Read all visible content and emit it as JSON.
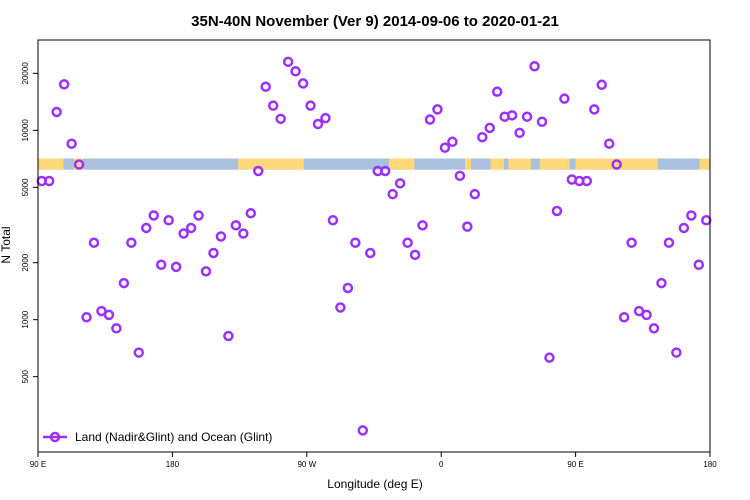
{
  "chart_data": {
    "type": "scatter",
    "title": "35N-40N November (Ver 9)   2014-09-06 to 2020-01-21",
    "xlabel": "Longitude (deg E)",
    "ylabel": "N Total",
    "x_ticks": [
      {
        "value": 90,
        "label": "90 E"
      },
      {
        "value": 180,
        "label": "180"
      },
      {
        "value": 270,
        "label": "90 W"
      },
      {
        "value": 360,
        "label": "0"
      },
      {
        "value": 450,
        "label": "90 E"
      },
      {
        "value": 540,
        "label": "180"
      }
    ],
    "xlim": [
      90,
      540
    ],
    "y_scale": "log",
    "ylim": [
      200,
      30000
    ],
    "y_ticks": [
      500,
      1000,
      2000,
      5000,
      10000,
      20000
    ],
    "grid": false,
    "legend_position": "bottom-left",
    "series": [
      {
        "name": "Land (Nadir&Glint) and Ocean (Glint)",
        "color": "#9b30ff",
        "x": [
          92.5,
          97.5,
          102.5,
          107.5,
          112.5,
          117.5,
          122.5,
          127.5,
          132.5,
          137.5,
          142.5,
          147.5,
          152.5,
          157.5,
          162.5,
          167.5,
          172.5,
          177.5,
          182.5,
          187.5,
          192.5,
          197.5,
          202.5,
          207.5,
          212.5,
          217.5,
          222.5,
          227.5,
          232.5,
          237.5,
          242.5,
          247.5,
          252.5,
          257.5,
          262.5,
          267.5,
          272.5,
          277.5,
          282.5,
          287.5,
          292.5,
          297.5,
          302.5,
          307.5,
          312.5,
          317.5,
          322.5,
          327.5,
          332.5,
          337.5,
          342.5,
          347.5,
          352.5,
          357.5,
          362.5,
          367.5,
          372.5,
          377.5,
          382.5,
          387.5,
          392.5,
          397.5,
          402.5,
          407.5,
          412.5,
          417.5,
          422.5,
          427.5,
          432.5,
          437.5,
          442.5,
          447.5,
          452.5,
          457.5,
          462.5,
          467.5,
          472.5,
          477.5,
          482.5,
          487.5,
          492.5,
          497.5,
          502.5,
          507.5,
          512.5,
          517.5,
          522.5,
          527.5,
          532.5,
          537.5
        ],
        "y": [
          5400,
          5400,
          12500,
          17500,
          8500,
          6600,
          1030,
          2550,
          1110,
          1060,
          900,
          1560,
          2550,
          670,
          3050,
          3550,
          1950,
          3350,
          1900,
          2850,
          3050,
          3550,
          1800,
          2250,
          2750,
          820,
          3150,
          2850,
          3650,
          6100,
          17000,
          13500,
          11500,
          23000,
          20500,
          17700,
          13500,
          10800,
          11600,
          3350,
          1160,
          1470,
          2550,
          260,
          2250,
          6100,
          6100,
          4600,
          5250,
          2550,
          2200,
          3150,
          11400,
          12900,
          8100,
          8700,
          5750,
          3100,
          4600,
          9200,
          10300,
          16000,
          11800,
          12000,
          9700,
          11800,
          21800,
          11100,
          630,
          3750,
          14700,
          5500,
          5400,
          5400,
          12900,
          17400,
          8500,
          6600,
          1030,
          2550,
          1110,
          1060,
          900,
          1560,
          2550,
          670,
          3050,
          3550,
          1950,
          3350
        ]
      }
    ],
    "background_band": {
      "y_range": [
        6200,
        7100
      ],
      "colors": {
        "land": "#ffd979",
        "ocean": "#a9c1de"
      }
    }
  }
}
